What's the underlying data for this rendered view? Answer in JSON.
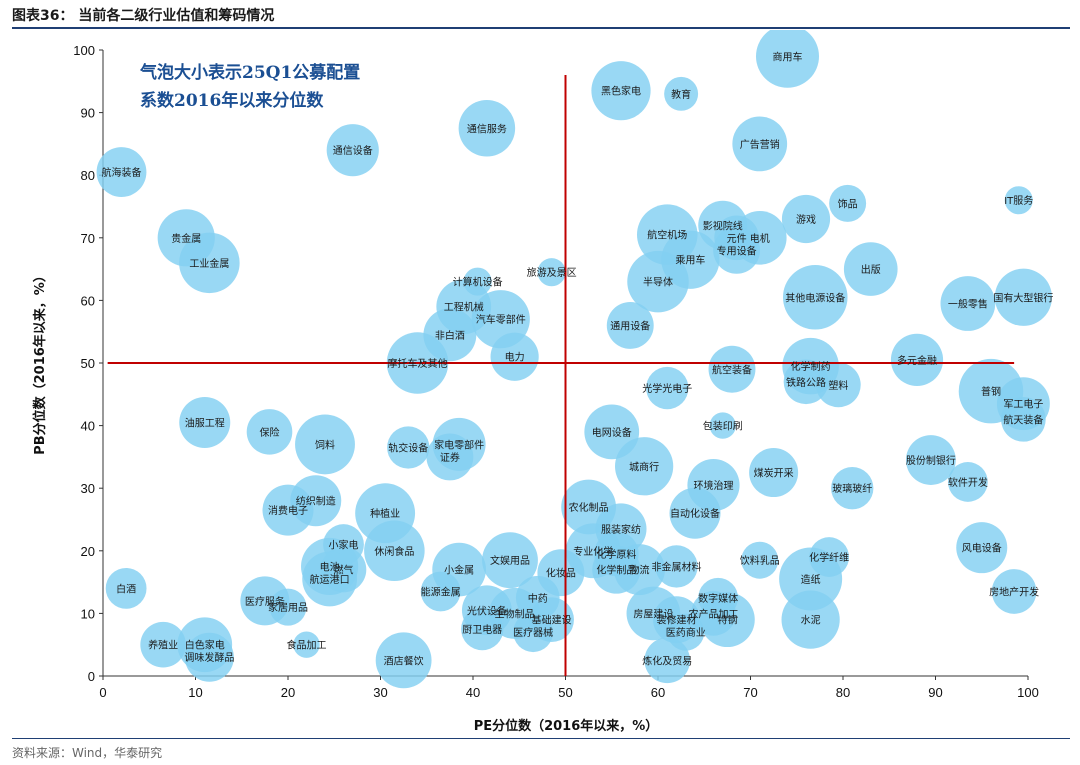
{
  "header": {
    "title": "图表36：  当前各二级行业估值和筹码情况"
  },
  "footer": {
    "source": "资料来源：Wind，华泰研究"
  },
  "chart_data": {
    "type": "scatter",
    "annotation": [
      "气泡大小表示25Q1公募配置",
      "系数2016年以来分位数"
    ],
    "xlabel": "PE分位数（2016年以来，%）",
    "ylabel": "PB分位数（2016年以来，%）",
    "xlim": [
      0,
      100
    ],
    "ylim": [
      0,
      100
    ],
    "xticks": [
      0,
      10,
      20,
      30,
      40,
      50,
      60,
      70,
      80,
      90,
      100
    ],
    "yticks": [
      0,
      10,
      20,
      30,
      40,
      50,
      60,
      70,
      80,
      90,
      100
    ],
    "reference_lines": {
      "x": 50,
      "y": 50,
      "color": "#c00000"
    },
    "bubble_color": "#83d0f2",
    "points": [
      {
        "label": "商用车",
        "x": 74,
        "y": 99,
        "size": 90
      },
      {
        "label": "黑色家电",
        "x": 56,
        "y": 93.5,
        "size": 78
      },
      {
        "label": "教育",
        "x": 62.5,
        "y": 93,
        "size": 20
      },
      {
        "label": "通信服务",
        "x": 41.5,
        "y": 87.5,
        "size": 70
      },
      {
        "label": "广告营销",
        "x": 71,
        "y": 85,
        "size": 65
      },
      {
        "label": "通信设备",
        "x": 27,
        "y": 84,
        "size": 58
      },
      {
        "label": "航海装备",
        "x": 2,
        "y": 80.5,
        "size": 52
      },
      {
        "label": "饰品",
        "x": 80.5,
        "y": 75.5,
        "size": 25
      },
      {
        "label": "IT服务",
        "x": 99,
        "y": 76,
        "size": 12
      },
      {
        "label": "贵金属",
        "x": 9,
        "y": 70,
        "size": 72
      },
      {
        "label": "航空机场",
        "x": 61,
        "y": 70.5,
        "size": 82
      },
      {
        "label": "影视院线",
        "x": 67,
        "y": 72,
        "size": 50
      },
      {
        "label": "游戏",
        "x": 76,
        "y": 73,
        "size": 48
      },
      {
        "label": "元件",
        "x": 68.5,
        "y": 70,
        "size": 40
      },
      {
        "label": "电机",
        "x": 71,
        "y": 70,
        "size": 62
      },
      {
        "label": "专用设备",
        "x": 68.5,
        "y": 68,
        "size": 45
      },
      {
        "label": "乘用车",
        "x": 63.5,
        "y": 66.5,
        "size": 75
      },
      {
        "label": "工业金属",
        "x": 11.5,
        "y": 66,
        "size": 82
      },
      {
        "label": "出版",
        "x": 83,
        "y": 65,
        "size": 62
      },
      {
        "label": "半导体",
        "x": 60,
        "y": 63,
        "size": 85
      },
      {
        "label": "计算机设备",
        "x": 40.5,
        "y": 63,
        "size": 12
      },
      {
        "label": "旅游及景区",
        "x": 48.5,
        "y": 64.5,
        "size": 12
      },
      {
        "label": "其他电源设备",
        "x": 77,
        "y": 60.5,
        "size": 95
      },
      {
        "label": "一般零售",
        "x": 93.5,
        "y": 59.5,
        "size": 65
      },
      {
        "label": "国有大型银行",
        "x": 99.5,
        "y": 60.5,
        "size": 72
      },
      {
        "label": "工程机械",
        "x": 39,
        "y": 59,
        "size": 65
      },
      {
        "label": "汽车零部件",
        "x": 43,
        "y": 57,
        "size": 75
      },
      {
        "label": "通用设备",
        "x": 57,
        "y": 56,
        "size": 45
      },
      {
        "label": "非白酒",
        "x": 37.5,
        "y": 54.5,
        "size": 60
      },
      {
        "label": "摩托车及其他",
        "x": 34,
        "y": 50,
        "size": 85
      },
      {
        "label": "电力",
        "x": 44.5,
        "y": 51,
        "size": 48
      },
      {
        "label": "多元金融",
        "x": 88,
        "y": 50.5,
        "size": 58
      },
      {
        "label": "航空装备",
        "x": 68,
        "y": 49,
        "size": 45
      },
      {
        "label": "化学制药",
        "x": 76.5,
        "y": 49.5,
        "size": 70
      },
      {
        "label": "铁路公路",
        "x": 76,
        "y": 47,
        "size": 40
      },
      {
        "label": "塑料",
        "x": 79.5,
        "y": 46.5,
        "size": 40
      },
      {
        "label": "光学光电子",
        "x": 61,
        "y": 46,
        "size": 35
      },
      {
        "label": "普钢",
        "x": 96,
        "y": 45.5,
        "size": 95
      },
      {
        "label": "军工电子",
        "x": 99.5,
        "y": 43.5,
        "size": 60
      },
      {
        "label": "航天装备",
        "x": 99.5,
        "y": 41,
        "size": 40
      },
      {
        "label": "油服工程",
        "x": 11,
        "y": 40.5,
        "size": 55
      },
      {
        "label": "包装印刷",
        "x": 67,
        "y": 40,
        "size": 10
      },
      {
        "label": "保险",
        "x": 18,
        "y": 39,
        "size": 42
      },
      {
        "label": "电网设备",
        "x": 55,
        "y": 39,
        "size": 65
      },
      {
        "label": "饲料",
        "x": 24,
        "y": 37,
        "size": 80
      },
      {
        "label": "轨交设备",
        "x": 33,
        "y": 36.5,
        "size": 35
      },
      {
        "label": "家电零部件",
        "x": 38.5,
        "y": 37,
        "size": 60
      },
      {
        "label": "证券",
        "x": 37.5,
        "y": 35,
        "size": 45
      },
      {
        "label": "股份制银行",
        "x": 89.5,
        "y": 34.5,
        "size": 52
      },
      {
        "label": "城商行",
        "x": 58.5,
        "y": 33.5,
        "size": 75
      },
      {
        "label": "煤炭开采",
        "x": 72.5,
        "y": 32.5,
        "size": 50
      },
      {
        "label": "软件开发",
        "x": 93.5,
        "y": 31,
        "size": 30
      },
      {
        "label": "环境治理",
        "x": 66,
        "y": 30.5,
        "size": 58
      },
      {
        "label": "玻璃玻纤",
        "x": 81,
        "y": 30,
        "size": 35
      },
      {
        "label": "纺织制造",
        "x": 23,
        "y": 28,
        "size": 55
      },
      {
        "label": "消费电子",
        "x": 20,
        "y": 26.5,
        "size": 55
      },
      {
        "label": "种植业",
        "x": 30.5,
        "y": 26,
        "size": 80
      },
      {
        "label": "农化制品",
        "x": 52.5,
        "y": 27,
        "size": 65
      },
      {
        "label": "自动化设备",
        "x": 64,
        "y": 26,
        "size": 55
      },
      {
        "label": "服装家纺",
        "x": 56,
        "y": 23.5,
        "size": 55
      },
      {
        "label": "小家电",
        "x": 26,
        "y": 21,
        "size": 32
      },
      {
        "label": "休闲食品",
        "x": 31.5,
        "y": 20,
        "size": 82
      },
      {
        "label": "风电设备",
        "x": 95,
        "y": 20.5,
        "size": 55
      },
      {
        "label": "专业化学",
        "x": 53,
        "y": 20,
        "size": 65
      },
      {
        "label": "化学纤维",
        "x": 78.5,
        "y": 19,
        "size": 30
      },
      {
        "label": "化学原料",
        "x": 55.5,
        "y": 19.5,
        "size": 40
      },
      {
        "label": "文娱用品",
        "x": 44,
        "y": 18.5,
        "size": 68
      },
      {
        "label": "电池",
        "x": 24.5,
        "y": 17.5,
        "size": 72
      },
      {
        "label": "燃气",
        "x": 26,
        "y": 17,
        "size": 42
      },
      {
        "label": "饮料乳品",
        "x": 71,
        "y": 18.5,
        "size": 25
      },
      {
        "label": "小金属",
        "x": 38.5,
        "y": 17,
        "size": 62
      },
      {
        "label": "化妆品",
        "x": 49.5,
        "y": 16.5,
        "size": 45
      },
      {
        "label": "化学制品",
        "x": 55.5,
        "y": 17,
        "size": 48
      },
      {
        "label": "物流",
        "x": 58,
        "y": 17,
        "size": 55
      },
      {
        "label": "非金属材料",
        "x": 62,
        "y": 17.5,
        "size": 35
      },
      {
        "label": "造纸",
        "x": 76.5,
        "y": 15.5,
        "size": 90
      },
      {
        "label": "航运港口",
        "x": 24.5,
        "y": 15.5,
        "size": 65
      },
      {
        "label": "白酒",
        "x": 2.5,
        "y": 14,
        "size": 32
      },
      {
        "label": "房地产开发",
        "x": 98.5,
        "y": 13.5,
        "size": 40
      },
      {
        "label": "能源金属",
        "x": 36.5,
        "y": 13.5,
        "size": 30
      },
      {
        "label": "中药",
        "x": 47,
        "y": 12.5,
        "size": 38
      },
      {
        "label": "数字媒体",
        "x": 66.5,
        "y": 12.5,
        "size": 30
      },
      {
        "label": "医疗服务",
        "x": 17.5,
        "y": 12,
        "size": 50
      },
      {
        "label": "家居用品",
        "x": 20,
        "y": 11,
        "size": 25
      },
      {
        "label": "光伏设备",
        "x": 41.5,
        "y": 10.5,
        "size": 52
      },
      {
        "label": "生物制品",
        "x": 44.5,
        "y": 10,
        "size": 55
      },
      {
        "label": "房屋建设",
        "x": 59.5,
        "y": 10,
        "size": 62
      },
      {
        "label": "农产品加工",
        "x": 66,
        "y": 10,
        "size": 40
      },
      {
        "label": "装修建材",
        "x": 62,
        "y": 9,
        "size": 45
      },
      {
        "label": "特钢",
        "x": 67.5,
        "y": 9,
        "size": 65
      },
      {
        "label": "基础建设",
        "x": 48.5,
        "y": 9,
        "size": 40
      },
      {
        "label": "水泥",
        "x": 76.5,
        "y": 9,
        "size": 75
      },
      {
        "label": "厨卫电器",
        "x": 41,
        "y": 7.5,
        "size": 35
      },
      {
        "label": "医疗器械",
        "x": 46.5,
        "y": 7,
        "size": 30
      },
      {
        "label": "医药商业",
        "x": 63,
        "y": 7,
        "size": 25
      },
      {
        "label": "养殖业",
        "x": 6.5,
        "y": 5,
        "size": 42
      },
      {
        "label": "白色家电",
        "x": 11,
        "y": 5,
        "size": 65
      },
      {
        "label": "食品加工",
        "x": 22,
        "y": 5,
        "size": 10
      },
      {
        "label": "调味发酵品",
        "x": 11.5,
        "y": 3,
        "size": 50
      },
      {
        "label": "酒店餐饮",
        "x": 32.5,
        "y": 2.5,
        "size": 68
      },
      {
        "label": "炼化及贸易",
        "x": 61,
        "y": 2.5,
        "size": 42
      }
    ]
  }
}
